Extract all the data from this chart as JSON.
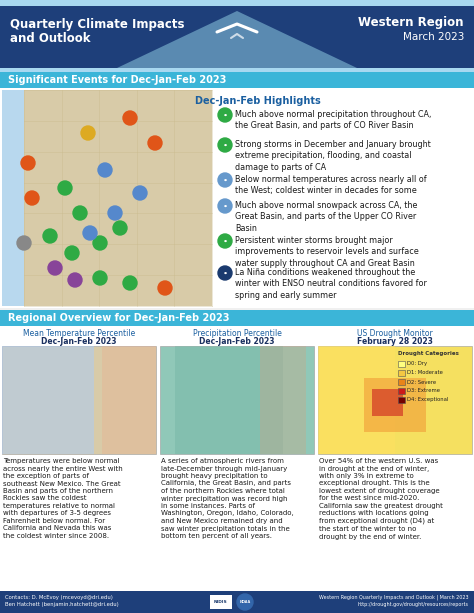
{
  "title_left": "Quarterly Climate Impacts\nand Outlook",
  "header_bg_color": "#1e3f7a",
  "header_text_color": "#ffffff",
  "light_blue_tri": "#8cc8e0",
  "section1_label": "Significant Events for Dec-Jan-Feb 2023",
  "section1_bg": "#3bb5d8",
  "section1_text_color": "#ffffff",
  "section2_label": "Regional Overview for Dec-Jan-Feb 2023",
  "section2_bg": "#3bb5d8",
  "section2_text_color": "#ffffff",
  "highlights_title": "Dec-Jan-Feb Highlights",
  "highlights_title_color": "#1a5fa0",
  "highlights": [
    {
      "color": "#2eaa44",
      "text": "Much above normal precipitation throughout CA,\nthe Great Basin, and parts of CO River Basin"
    },
    {
      "color": "#2eaa44",
      "text": "Strong storms in December and January brought\nextreme precipitation, flooding, and coastal\ndamage to parts of CA"
    },
    {
      "color": "#6699cc",
      "text": "Below normal temperatures across nearly all of\nthe West; coldest winter in decades for some"
    },
    {
      "color": "#6699cc",
      "text": "Much above normal snowpack across CA, the\nGreat Basin, and parts of the Upper CO River\nBasin"
    },
    {
      "color": "#2eaa44",
      "text": "Persistent winter storms brought major\nimprovements to reservoir levels and surface\nwater supply throughout CA and Great Basin"
    },
    {
      "color": "#1a3a6e",
      "text": "La Niña conditions weakened throughout the\nwinter with ENSO neutral conditions favored for\nspring and early summer"
    }
  ],
  "map_col1_title1": "Mean Temperature Percentile",
  "map_col1_title2": "Dec-Jan-Feb 2023",
  "map_col2_title1": "Precipitation Percentile",
  "map_col2_title2": "Dec-Jan-Feb 2023",
  "map_col3_title1": "US Drought Monitor",
  "map_col3_title2": "February 28 2023",
  "map_title_color": "#1a5fa0",
  "map_bold_color": "#1a3060",
  "temp_desc": "Temperatures were below normal\nacross nearly the entire West with\nthe exception of parts of\nsoutheast New Mexico. The Great\nBasin and parts of the northern\nRockies saw the coldest\ntemperatures relative to normal\nwith departures of 3-5 degrees\nFahrenheit below normal. For\nCalifornia and Nevada this was\nthe coldest winter since 2008.",
  "precip_desc": "A series of atmospheric rivers from\nlate-December through mid-January\nbrought heavy precipitation to\nCalifornia, the Great Basin, and parts\nof the northern Rockies where total\nwinter precipitation was record high\nin some instances. Parts of\nWashington, Oregon, Idaho, Colorado,\nand New Mexico remained dry and\nsaw winter precipitation totals in the\nbottom ten percent of all years.",
  "drought_desc": "Over 54% of the western U.S. was\nin drought at the end of winter,\nwith only 3% in extreme to\nexceptional drought. This is the\nlowest extent of drought coverage\nfor the west since mid-2020.\nCalifornia saw the greatest drought\nreductions with locations going\nfrom exceptional drought (D4) at\nthe start of the winter to no\ndrought by the end of winter.",
  "drought_legend_title": "Drought Categories",
  "drought_legend": [
    {
      "label": "D0: Dry",
      "color": "#ffff80"
    },
    {
      "label": "D1: Moderate",
      "color": "#f5c842"
    },
    {
      "label": "D2: Severe",
      "color": "#e8841a"
    },
    {
      "label": "D3: Extreme",
      "color": "#cc1a1a"
    },
    {
      "label": "D4: Exceptional",
      "color": "#730000"
    }
  ],
  "footer_bg": "#1e3f7a",
  "footer_text_color": "#ffffff",
  "footer_left": "Contacts: D. McEvoy (mcevoyd@dri.edu)\nBen Hatchett (benjamin.hatchett@dri.edu)",
  "footer_right": "Western Region Quarterly Impacts and Outlook | March 2023\nhttp://drought.gov/drought/resources/reports",
  "bg_color": "#f0f0f0",
  "map_bg_tan": "#d8cba8",
  "map_bg_blue": "#b8d8ee",
  "map_bg_teal": "#90c8b8",
  "map_bg_yellow": "#f5e060"
}
